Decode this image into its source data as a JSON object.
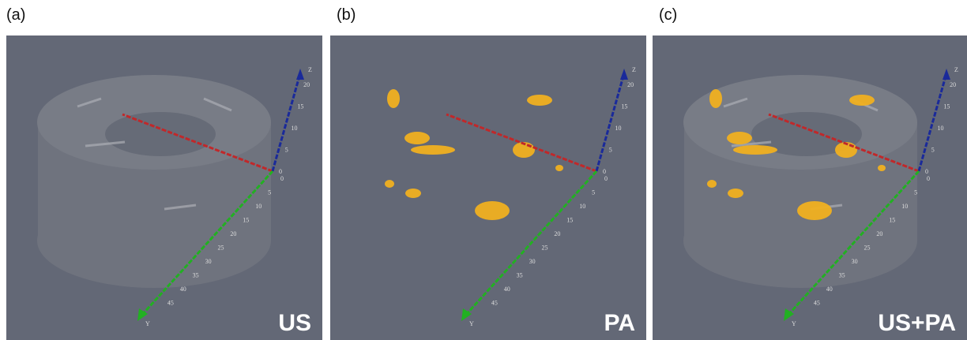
{
  "panels": [
    {
      "label": "(a)",
      "overlay": "US",
      "axes": {
        "z_label": "Z",
        "z_ticks": [
          "0",
          "5",
          "10",
          "15",
          "20"
        ],
        "y_label": "Y",
        "y_ticks": [
          "0",
          "5",
          "10",
          "15",
          "20",
          "25",
          "30",
          "35",
          "40",
          "45"
        ]
      }
    },
    {
      "label": "(b)",
      "overlay": "PA",
      "axes": {
        "z_label": "Z",
        "z_ticks": [
          "0",
          "5",
          "10",
          "15",
          "20"
        ],
        "y_label": "Y",
        "y_ticks": [
          "0",
          "5",
          "10",
          "15",
          "20",
          "25",
          "30",
          "35",
          "40",
          "45"
        ]
      }
    },
    {
      "label": "(c)",
      "overlay": "US+PA",
      "axes": {
        "z_label": "Z",
        "z_ticks": [
          "0",
          "5",
          "10",
          "15",
          "20"
        ],
        "y_label": "Y",
        "y_ticks": [
          "0",
          "5",
          "10",
          "15",
          "20",
          "25",
          "30",
          "35",
          "40",
          "45"
        ]
      }
    }
  ]
}
